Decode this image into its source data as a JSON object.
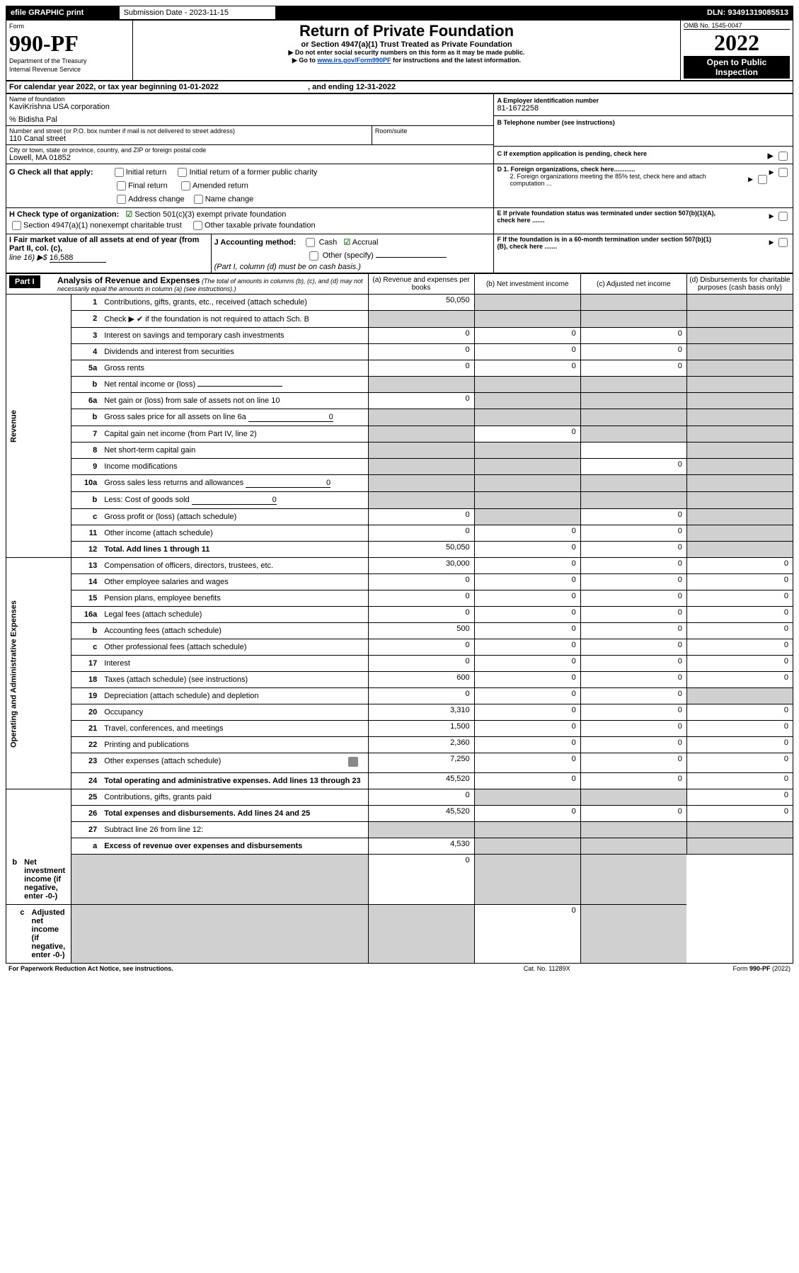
{
  "topbar": {
    "efile": "efile GRAPHIC print",
    "sub_label": "Submission Date - 2023-11-15",
    "dln": "DLN: 93491319085513"
  },
  "masthead": {
    "form_label": "Form",
    "form_number": "990-PF",
    "dept": "Department of the Treasury",
    "irs": "Internal Revenue Service",
    "title": "Return of Private Foundation",
    "subtitle": "or Section 4947(a)(1) Trust Treated as Private Foundation",
    "warn_arrow": "▶ Do not enter social security numbers on this form as it may be made public.",
    "goto_prefix": "▶ Go to ",
    "goto_link": "www.irs.gov/Form990PF",
    "goto_suffix": " for instructions and the latest information.",
    "omb": "OMB No. 1545-0047",
    "year": "2022",
    "open": "Open to Public Inspection"
  },
  "period": {
    "line": "For calendar year 2022, or tax year beginning 01-01-2022",
    "ending": ", and ending 12-31-2022"
  },
  "id": {
    "name_label": "Name of foundation",
    "name": "KaviKrishna USA corporation",
    "pct": "% Bidisha Pal",
    "addr_label": "Number and street (or P.O. box number if mail is not delivered to street address)",
    "addr": "110 Canal street",
    "room_label": "Room/suite",
    "city_label": "City or town, state or province, country, and ZIP or foreign postal code",
    "city": "Lowell, MA  01852",
    "A": "A Employer identification number",
    "ein": "81-1672258",
    "B": "B Telephone number (see instructions)",
    "C": "C If exemption application is pending, check here"
  },
  "checks": {
    "G": "G Check all that apply:",
    "g_opts": [
      "Initial return",
      "Initial return of a former public charity",
      "Final return",
      "Amended return",
      "Address change",
      "Name change"
    ],
    "H": "H Check type of organization:",
    "h1": "Section 501(c)(3) exempt private foundation",
    "h2": "Section 4947(a)(1) nonexempt charitable trust",
    "h3": "Other taxable private foundation",
    "D1": "D 1. Foreign organizations, check here............",
    "D2": "2. Foreign organizations meeting the 85% test, check here and attach computation ...",
    "E": "E  If private foundation status was terminated under section 507(b)(1)(A), check here .......",
    "F": "F  If the foundation is in a 60-month termination under section 507(b)(1)(B), check here .......",
    "I": "I Fair market value of all assets at end of year (from Part II, col. (c),",
    "I_line": "line 16) ▶$ ",
    "I_val": "16,588",
    "J": "J Accounting method:",
    "j_cash": "Cash",
    "j_accrual": "Accrual",
    "j_other": "Other (specify)",
    "j_note": "(Part I, column (d) must be on cash basis.)"
  },
  "part1": {
    "label": "Part I",
    "title": "Analysis of Revenue and Expenses",
    "title_note": " (The total of amounts in columns (b), (c), and (d) may not necessarily equal the amounts in column (a) (see instructions).)",
    "cols": {
      "a": "(a)    Revenue and expenses per books",
      "b": "(b)    Net investment income",
      "c": "(c)   Adjusted net income",
      "d": "(d)   Disbursements for charitable purposes (cash basis only)"
    }
  },
  "side": {
    "rev": "Revenue",
    "exp": "Operating and Administrative Expenses"
  },
  "rows": [
    {
      "n": "1",
      "t": "Contributions, gifts, grants, etc., received (attach schedule)",
      "a": "50,050",
      "b": "",
      "c": "",
      "d": "",
      "sb": true,
      "sc": true,
      "sd": true
    },
    {
      "n": "2",
      "t": "Check ▶ ✔ if the foundation is not required to attach Sch. B",
      "a": "",
      "b": "",
      "c": "",
      "d": "",
      "sa": true,
      "sb": true,
      "sc": true,
      "sd": true,
      "nodots": true
    },
    {
      "n": "3",
      "t": "Interest on savings and temporary cash investments",
      "a": "0",
      "b": "0",
      "c": "0",
      "d": "",
      "sd": true
    },
    {
      "n": "4",
      "t": "Dividends and interest from securities",
      "a": "0",
      "b": "0",
      "c": "0",
      "d": "",
      "sd": true
    },
    {
      "n": "5a",
      "t": "Gross rents",
      "a": "0",
      "b": "0",
      "c": "0",
      "d": "",
      "sd": true
    },
    {
      "n": "b",
      "t": "Net rental income or (loss)",
      "a": "",
      "b": "",
      "c": "",
      "d": "",
      "sa": true,
      "sb": true,
      "sc": true,
      "sd": true,
      "fill": true,
      "nodots": true
    },
    {
      "n": "6a",
      "t": "Net gain or (loss) from sale of assets not on line 10",
      "a": "0",
      "b": "",
      "c": "",
      "d": "",
      "sb": true,
      "sc": true,
      "sd": true
    },
    {
      "n": "b",
      "t": "Gross sales price for all assets on line 6a",
      "a": "",
      "b": "",
      "c": "",
      "d": "",
      "sa": true,
      "sb": true,
      "sc": true,
      "sd": true,
      "fill": true,
      "fv": "0",
      "nodots": true
    },
    {
      "n": "7",
      "t": "Capital gain net income (from Part IV, line 2)",
      "a": "",
      "b": "0",
      "c": "",
      "d": "",
      "sa": true,
      "sc": true,
      "sd": true
    },
    {
      "n": "8",
      "t": "Net short-term capital gain",
      "a": "",
      "b": "",
      "c": "",
      "d": "",
      "sa": true,
      "sb": true,
      "sd": true
    },
    {
      "n": "9",
      "t": "Income modifications",
      "a": "",
      "b": "",
      "c": "0",
      "d": "",
      "sa": true,
      "sb": true,
      "sd": true
    },
    {
      "n": "10a",
      "t": "Gross sales less returns and allowances",
      "a": "",
      "b": "",
      "c": "",
      "d": "",
      "sa": true,
      "sb": true,
      "sc": true,
      "sd": true,
      "fill": true,
      "fv": "0",
      "nodots": true
    },
    {
      "n": "b",
      "t": "Less: Cost of goods sold",
      "a": "",
      "b": "",
      "c": "",
      "d": "",
      "sa": true,
      "sb": true,
      "sc": true,
      "sd": true,
      "fill": true,
      "fv": "0",
      "nodots": true
    },
    {
      "n": "c",
      "t": "Gross profit or (loss) (attach schedule)",
      "a": "0",
      "b": "",
      "c": "0",
      "d": "",
      "sb": true,
      "sd": true
    },
    {
      "n": "11",
      "t": "Other income (attach schedule)",
      "a": "0",
      "b": "0",
      "c": "0",
      "d": "",
      "sd": true
    },
    {
      "n": "12",
      "t": "Total. Add lines 1 through 11",
      "a": "50,050",
      "b": "0",
      "c": "0",
      "d": "",
      "bold": true,
      "sd": true
    },
    {
      "n": "13",
      "t": "Compensation of officers, directors, trustees, etc.",
      "a": "30,000",
      "b": "0",
      "c": "0",
      "d": "0"
    },
    {
      "n": "14",
      "t": "Other employee salaries and wages",
      "a": "0",
      "b": "0",
      "c": "0",
      "d": "0"
    },
    {
      "n": "15",
      "t": "Pension plans, employee benefits",
      "a": "0",
      "b": "0",
      "c": "0",
      "d": "0"
    },
    {
      "n": "16a",
      "t": "Legal fees (attach schedule)",
      "a": "0",
      "b": "0",
      "c": "0",
      "d": "0"
    },
    {
      "n": "b",
      "t": "Accounting fees (attach schedule)",
      "a": "500",
      "b": "0",
      "c": "0",
      "d": "0"
    },
    {
      "n": "c",
      "t": "Other professional fees (attach schedule)",
      "a": "0",
      "b": "0",
      "c": "0",
      "d": "0"
    },
    {
      "n": "17",
      "t": "Interest",
      "a": "0",
      "b": "0",
      "c": "0",
      "d": "0"
    },
    {
      "n": "18",
      "t": "Taxes (attach schedule) (see instructions)",
      "a": "600",
      "b": "0",
      "c": "0",
      "d": "0"
    },
    {
      "n": "19",
      "t": "Depreciation (attach schedule) and depletion",
      "a": "0",
      "b": "0",
      "c": "0",
      "d": "",
      "sd": true
    },
    {
      "n": "20",
      "t": "Occupancy",
      "a": "3,310",
      "b": "0",
      "c": "0",
      "d": "0"
    },
    {
      "n": "21",
      "t": "Travel, conferences, and meetings",
      "a": "1,500",
      "b": "0",
      "c": "0",
      "d": "0"
    },
    {
      "n": "22",
      "t": "Printing and publications",
      "a": "2,360",
      "b": "0",
      "c": "0",
      "d": "0"
    },
    {
      "n": "23",
      "t": "Other expenses (attach schedule)",
      "a": "7,250",
      "b": "0",
      "c": "0",
      "d": "0",
      "icon": true
    },
    {
      "n": "24",
      "t": "Total operating and administrative expenses. Add lines 13 through 23",
      "a": "45,520",
      "b": "0",
      "c": "0",
      "d": "0",
      "bold": true,
      "nodots": true
    },
    {
      "n": "25",
      "t": "Contributions, gifts, grants paid",
      "a": "0",
      "b": "",
      "c": "",
      "d": "0",
      "sb": true,
      "sc": true
    },
    {
      "n": "26",
      "t": "Total expenses and disbursements. Add lines 24 and 25",
      "a": "45,520",
      "b": "0",
      "c": "0",
      "d": "0",
      "bold": true,
      "nodots": true
    },
    {
      "n": "27",
      "t": "Subtract line 26 from line 12:",
      "a": "",
      "b": "",
      "c": "",
      "d": "",
      "sa": true,
      "sb": true,
      "sc": true,
      "sd": true,
      "nodots": true
    },
    {
      "n": "a",
      "t": "Excess of revenue over expenses and disbursements",
      "a": "4,530",
      "b": "",
      "c": "",
      "d": "",
      "bold": true,
      "sb": true,
      "sc": true,
      "sd": true,
      "nodots": true
    },
    {
      "n": "b",
      "t": "Net investment income (if negative, enter -0-)",
      "a": "",
      "b": "0",
      "c": "",
      "d": "",
      "bold": true,
      "sa": true,
      "sc": true,
      "sd": true,
      "nodots": true
    },
    {
      "n": "c",
      "t": "Adjusted net income (if negative, enter -0-)",
      "a": "",
      "b": "",
      "c": "0",
      "d": "",
      "bold": true,
      "sa": true,
      "sb": true,
      "sd": true
    }
  ],
  "footer": {
    "left": "For Paperwork Reduction Act Notice, see instructions.",
    "mid": "Cat. No. 11289X",
    "right": "Form 990-PF (2022)"
  }
}
